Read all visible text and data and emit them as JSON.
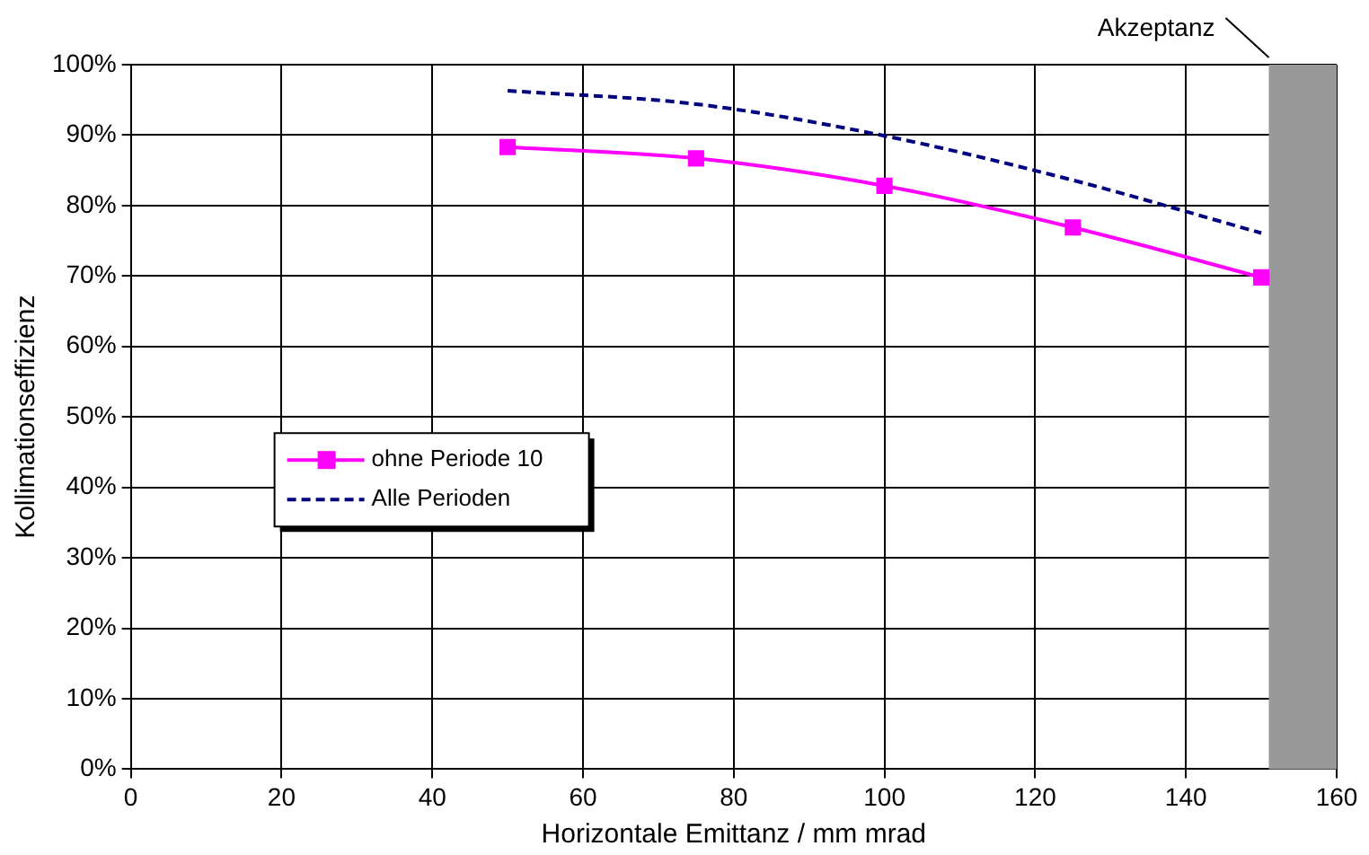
{
  "chart_data": {
    "type": "line",
    "xlabel": "Horizontale Emittanz / mm mrad",
    "ylabel": "Kollimationseffizienz",
    "x": [
      50,
      75,
      100,
      125,
      150
    ],
    "series": [
      {
        "name": "ohne Periode 10",
        "color": "#ff00ff",
        "values": [
          88.3,
          86.7,
          82.8,
          76.9,
          69.8
        ],
        "marker": "square",
        "line_style": "solid"
      },
      {
        "name": "Alle Perioden",
        "color": "#000080",
        "values": [
          96.3,
          94.4,
          89.9,
          83.6,
          76.1
        ],
        "marker": "none",
        "line_style": "dashed"
      }
    ],
    "xlim": [
      0,
      160
    ],
    "xticks": [
      0,
      20,
      40,
      60,
      80,
      100,
      120,
      140,
      160
    ],
    "ylim": [
      0,
      100
    ],
    "yticks": [
      {
        "value": 0,
        "label": "0%"
      },
      {
        "value": 10,
        "label": "10%"
      },
      {
        "value": 20,
        "label": "20%"
      },
      {
        "value": 30,
        "label": "30%"
      },
      {
        "value": 40,
        "label": "40%"
      },
      {
        "value": 50,
        "label": "50%"
      },
      {
        "value": 60,
        "label": "60%"
      },
      {
        "value": 70,
        "label": "70%"
      },
      {
        "value": 80,
        "label": "80%"
      },
      {
        "value": 90,
        "label": "90%"
      },
      {
        "value": 100,
        "label": "100%"
      }
    ],
    "bands": [
      {
        "axis": "x",
        "from": 151,
        "to": 160,
        "label": "Akzeptanz",
        "color": "#999999"
      }
    ],
    "grid": true,
    "legend": "left"
  }
}
